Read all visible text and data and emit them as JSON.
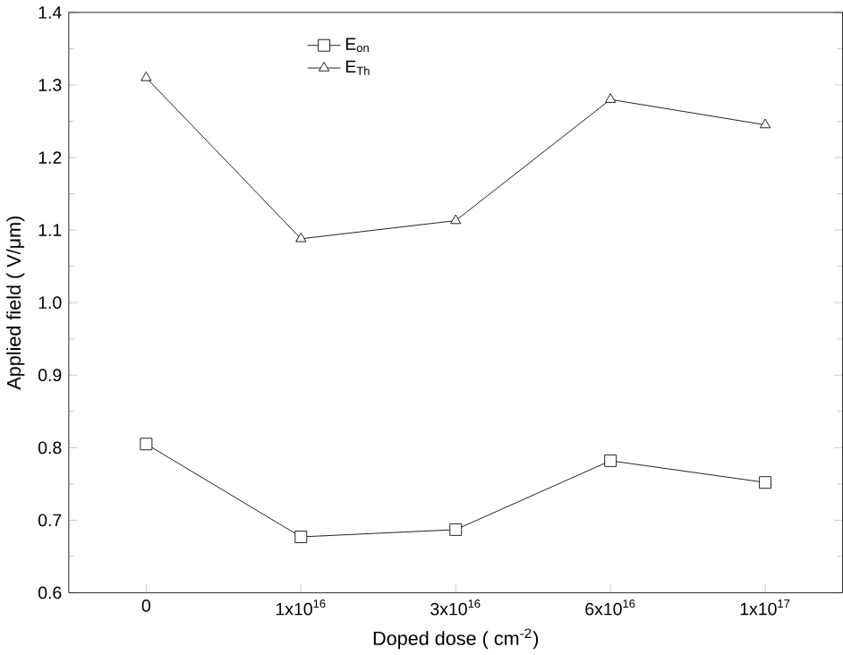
{
  "chart_data": {
    "type": "line",
    "xlabel": "Doped dose ( cm$^{-2}$)",
    "ylabel": "Applied field ( V/μm)",
    "categories": [
      "0",
      "1x10$^{16}$",
      "3x10$^{16}$",
      "6x10$^{16}$",
      "1x10$^{17}$"
    ],
    "series": [
      {
        "name": "E$_{on}$",
        "color": "#000000",
        "marker": "square",
        "values": [
          0.805,
          0.677,
          0.687,
          0.782,
          0.752
        ]
      },
      {
        "name": "E$_{Th}$",
        "color": "#000000",
        "marker": "triangle",
        "values": [
          1.31,
          1.088,
          1.113,
          1.28,
          1.245
        ]
      }
    ],
    "ylim": [
      0.6,
      1.4
    ],
    "yticks": [
      0.6,
      0.7,
      0.8,
      0.9,
      {
        "value": 1,
        "label": "1.0"
      },
      1.1,
      1.2,
      1.3,
      1.4
    ],
    "legend": "top",
    "line_style": "solid"
  }
}
